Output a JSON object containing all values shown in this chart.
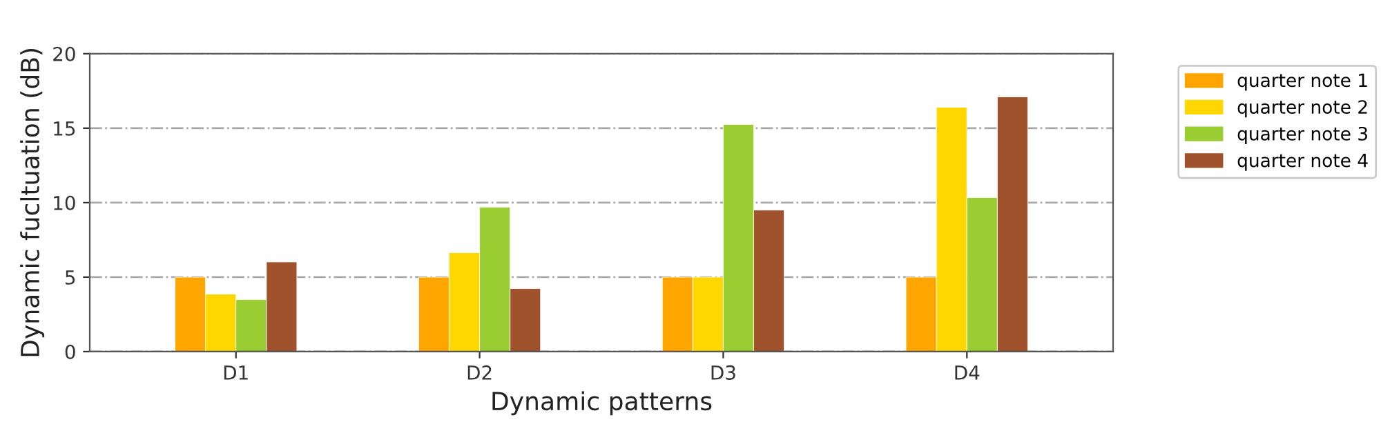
{
  "chart_data": {
    "type": "bar",
    "xlabel": "Dynamic patterns",
    "ylabel": "Dynamic fucltuation (dB)",
    "categories": [
      "D1",
      "D2",
      "D3",
      "D4"
    ],
    "series": [
      {
        "name": "quarter note 1",
        "color": "#ffa500",
        "values": [
          5,
          5,
          5,
          5
        ]
      },
      {
        "name": "quarter note 2",
        "color": "#ffd700",
        "values": [
          3.86,
          6.64,
          5,
          16.4
        ]
      },
      {
        "name": "quarter note 3",
        "color": "#9acd32",
        "values": [
          3.49,
          9.69,
          15.25,
          10.34
        ]
      },
      {
        "name": "quarter note 4",
        "color": "#a0522d",
        "values": [
          6.02,
          4.23,
          9.5,
          17.1
        ]
      }
    ],
    "ylim": [
      0,
      20
    ],
    "yticks": [
      0,
      5,
      10,
      15,
      20
    ],
    "grid": "y",
    "legend": "right"
  }
}
